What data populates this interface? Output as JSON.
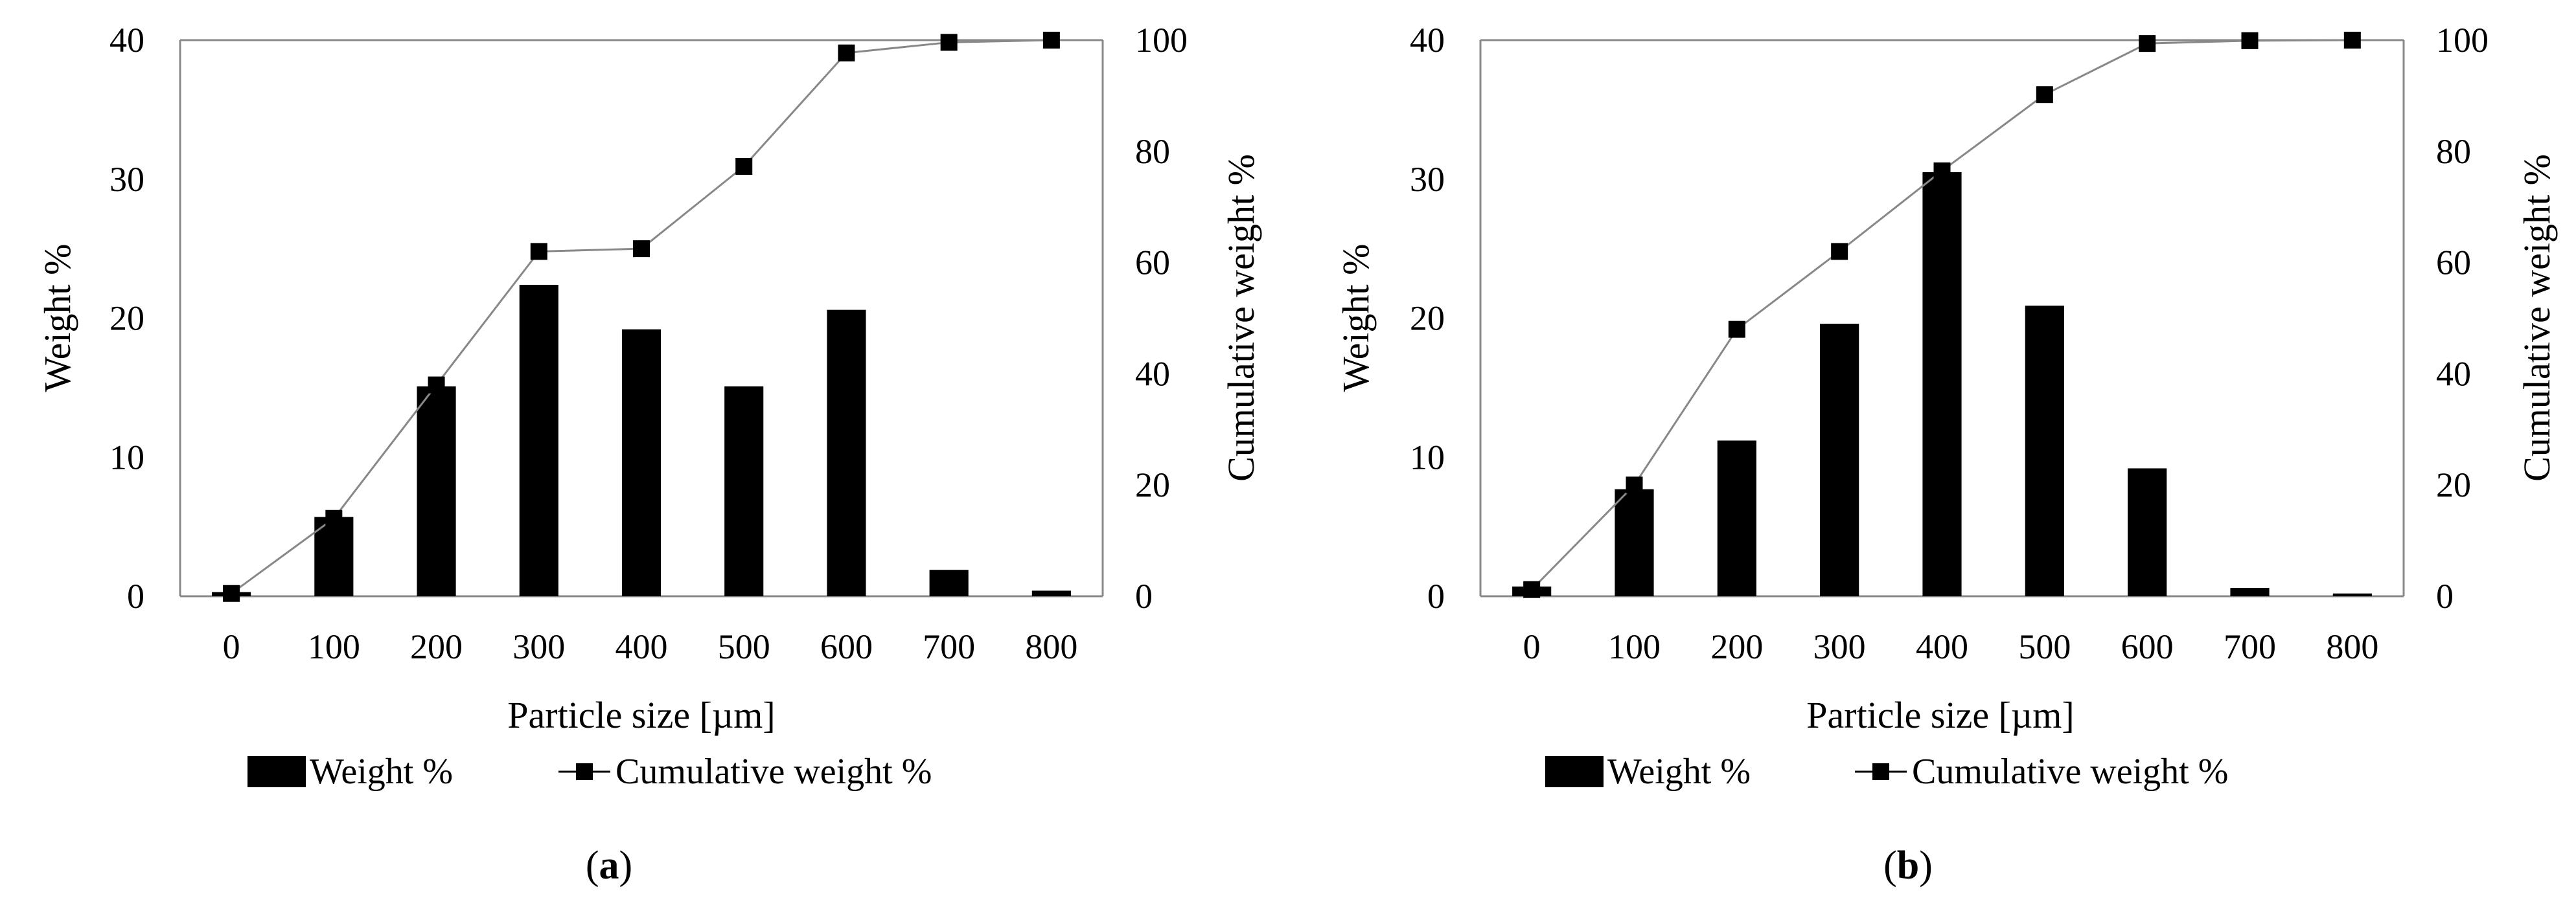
{
  "chart_data": [
    {
      "type": "bar+line",
      "caption_label": "a",
      "xlabel": "Particle size [µm]",
      "ylabel_left": "Weight %",
      "ylabel_right": "Cumulative weight %",
      "categories": [
        "0",
        "100",
        "200",
        "300",
        "400",
        "500",
        "600",
        "700",
        "800"
      ],
      "ylim_left": [
        0,
        40
      ],
      "yticks_left": [
        "0",
        "10",
        "20",
        "30",
        "40"
      ],
      "ylim_right": [
        0,
        100
      ],
      "yticks_right": [
        "0",
        "20",
        "40",
        "60",
        "80",
        "100"
      ],
      "series": [
        {
          "name": "Weight %",
          "kind": "bar",
          "axis": "left",
          "values": [
            0.3,
            5.7,
            15.1,
            22.4,
            19.2,
            15.1,
            20.6,
            1.9,
            0.4
          ]
        },
        {
          "name": "Cumulative weight %",
          "kind": "line",
          "axis": "right",
          "values": [
            0.5,
            14,
            38,
            62,
            62.5,
            77.3,
            97.7,
            99.6,
            100
          ]
        }
      ],
      "legend": [
        "Weight %",
        "Cumulative weight %"
      ]
    },
    {
      "type": "bar+line",
      "caption_label": "b",
      "xlabel": "Particle size [µm]",
      "ylabel_left": "Weight %",
      "ylabel_right": "Cumulative weight %",
      "categories": [
        "0",
        "100",
        "200",
        "300",
        "400",
        "500",
        "600",
        "700",
        "800"
      ],
      "ylim_left": [
        0,
        40
      ],
      "yticks_left": [
        "0",
        "10",
        "20",
        "30",
        "40"
      ],
      "ylim_right": [
        0,
        100
      ],
      "yticks_right": [
        "0",
        "20",
        "40",
        "60",
        "80",
        "100"
      ],
      "series": [
        {
          "name": "Weight %",
          "kind": "bar",
          "axis": "left",
          "values": [
            0.7,
            7.7,
            11.2,
            19.6,
            30.5,
            20.9,
            9.2,
            0.6,
            0.2
          ]
        },
        {
          "name": "Cumulative weight %",
          "kind": "line",
          "axis": "right",
          "values": [
            1.2,
            20,
            48,
            62,
            76.5,
            90.2,
            99.4,
            99.9,
            100
          ]
        }
      ],
      "legend": [
        "Weight %",
        "Cumulative weight %"
      ]
    }
  ],
  "captions": {
    "a": {
      "open": "(",
      "label": "a",
      "close": ")"
    },
    "b": {
      "open": "(",
      "label": "b",
      "close": ")"
    }
  }
}
